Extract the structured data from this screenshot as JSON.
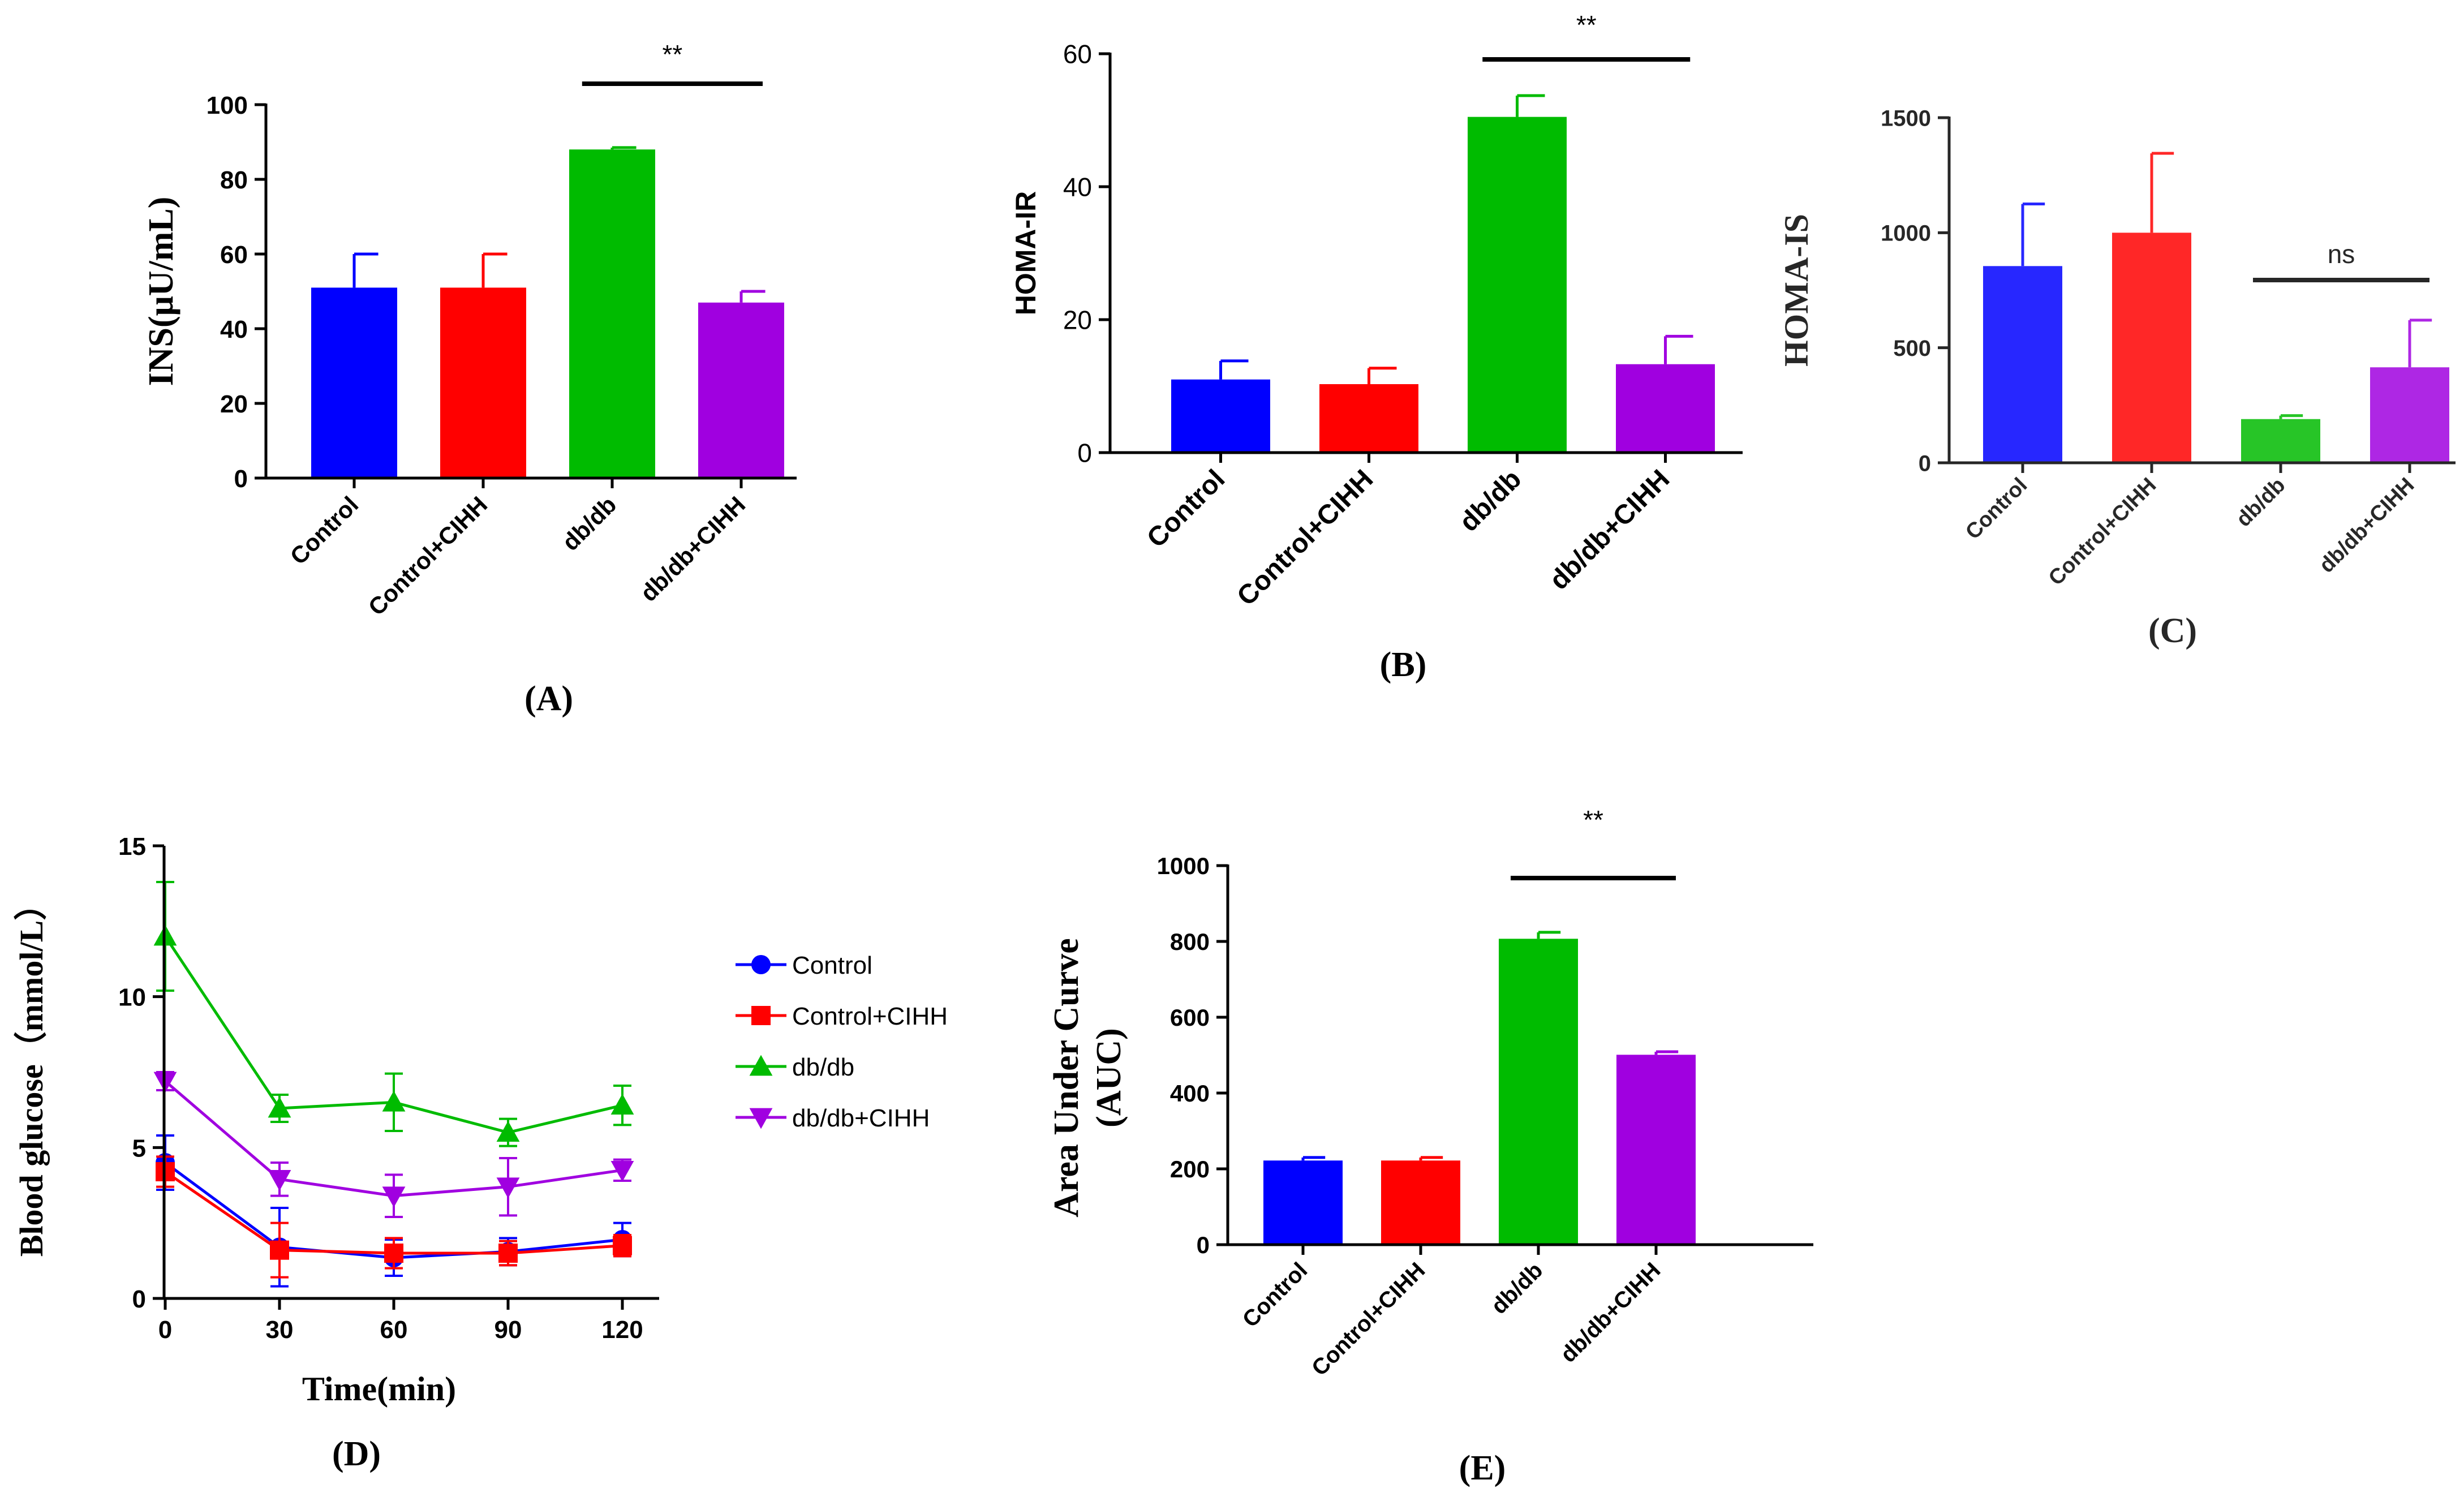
{
  "colors": {
    "control": "#0000ff",
    "control_cihh": "#ff0000",
    "dbdb": "#00bb00",
    "dbdb_cihh": "#a000e0",
    "axis": "#000000"
  },
  "chart_data": [
    {
      "id": "A",
      "type": "bar",
      "panel_label": "(A)",
      "ylabel": "INS(μU/mL)",
      "categories": [
        "Control",
        "Control+CIHH",
        "db/db",
        "db/db+CIHH"
      ],
      "values": [
        51,
        51,
        88,
        47
      ],
      "errors": [
        9,
        9,
        0.5,
        3
      ],
      "ylim": [
        0,
        100
      ],
      "yticks": [
        0,
        20,
        40,
        60,
        80,
        100
      ],
      "significance": {
        "label": "**",
        "from": 2,
        "to": 3
      }
    },
    {
      "id": "B",
      "type": "bar",
      "panel_label": "(B)",
      "ylabel": "HOMA-IR",
      "categories": [
        "Control",
        "Control+CIHH",
        "db/db",
        "db/db+CIHH"
      ],
      "values": [
        11,
        10.3,
        50.5,
        13.3
      ],
      "errors": [
        2.8,
        2.4,
        3.2,
        4.2
      ],
      "ylim": [
        0,
        60
      ],
      "yticks": [
        0,
        20,
        40,
        60
      ],
      "significance": {
        "label": "**",
        "from": 2,
        "to": 3
      }
    },
    {
      "id": "C",
      "type": "bar",
      "panel_label": "(C)",
      "ylabel": "HOMA-IS",
      "categories": [
        "Control",
        "Control+CIHH",
        "db/db",
        "db/db+CIHH"
      ],
      "values": [
        855,
        1000,
        190,
        415
      ],
      "errors": [
        270,
        345,
        15,
        205
      ],
      "ylim": [
        0,
        1500
      ],
      "yticks": [
        0,
        500,
        1000,
        1500
      ],
      "significance": {
        "label": "ns",
        "from": 2,
        "to": 3
      }
    },
    {
      "id": "D",
      "type": "line",
      "panel_label": "(D)",
      "xlabel": "Time(min)",
      "ylabel": "Blood glucose（mmol/L）",
      "x": [
        0,
        30,
        60,
        90,
        120
      ],
      "xticks": [
        0,
        30,
        60,
        90,
        120
      ],
      "xlim": [
        0,
        130
      ],
      "ylim": [
        0,
        15
      ],
      "yticks": [
        0,
        5,
        10,
        15
      ],
      "series": [
        {
          "name": "Control",
          "values": [
            4.5,
            1.7,
            1.35,
            1.55,
            1.95
          ],
          "errors": [
            0.9,
            1.3,
            0.6,
            0.45,
            0.55
          ],
          "marker": "circle"
        },
        {
          "name": "Control+CIHH",
          "values": [
            4.2,
            1.6,
            1.5,
            1.5,
            1.75
          ],
          "errors": [
            0.5,
            0.9,
            0.5,
            0.4,
            0.35
          ],
          "marker": "square"
        },
        {
          "name": "db/db",
          "values": [
            12,
            6.3,
            6.5,
            5.5,
            6.4
          ],
          "errors": [
            1.8,
            0.45,
            0.95,
            0.45,
            0.65
          ],
          "marker": "triangle-up"
        },
        {
          "name": "db/db+CIHH",
          "values": [
            7.2,
            3.95,
            3.4,
            3.7,
            4.25
          ],
          "errors": [
            0.3,
            0.55,
            0.7,
            0.95,
            0.35
          ],
          "marker": "triangle-down"
        }
      ]
    },
    {
      "id": "E",
      "type": "bar",
      "panel_label": "(E)",
      "ylabel_lines": [
        "Area Under Curve",
        "(AUC)"
      ],
      "categories": [
        "Control",
        "Control+CIHH",
        "db/db",
        "db/db+CIHH"
      ],
      "values": [
        222,
        222,
        807,
        501
      ],
      "errors": [
        8,
        8,
        17,
        8
      ],
      "ylim": [
        0,
        1000
      ],
      "yticks": [
        0,
        200,
        400,
        600,
        800,
        1000
      ],
      "significance": {
        "label": "**",
        "from": 2,
        "to": 3
      }
    }
  ]
}
